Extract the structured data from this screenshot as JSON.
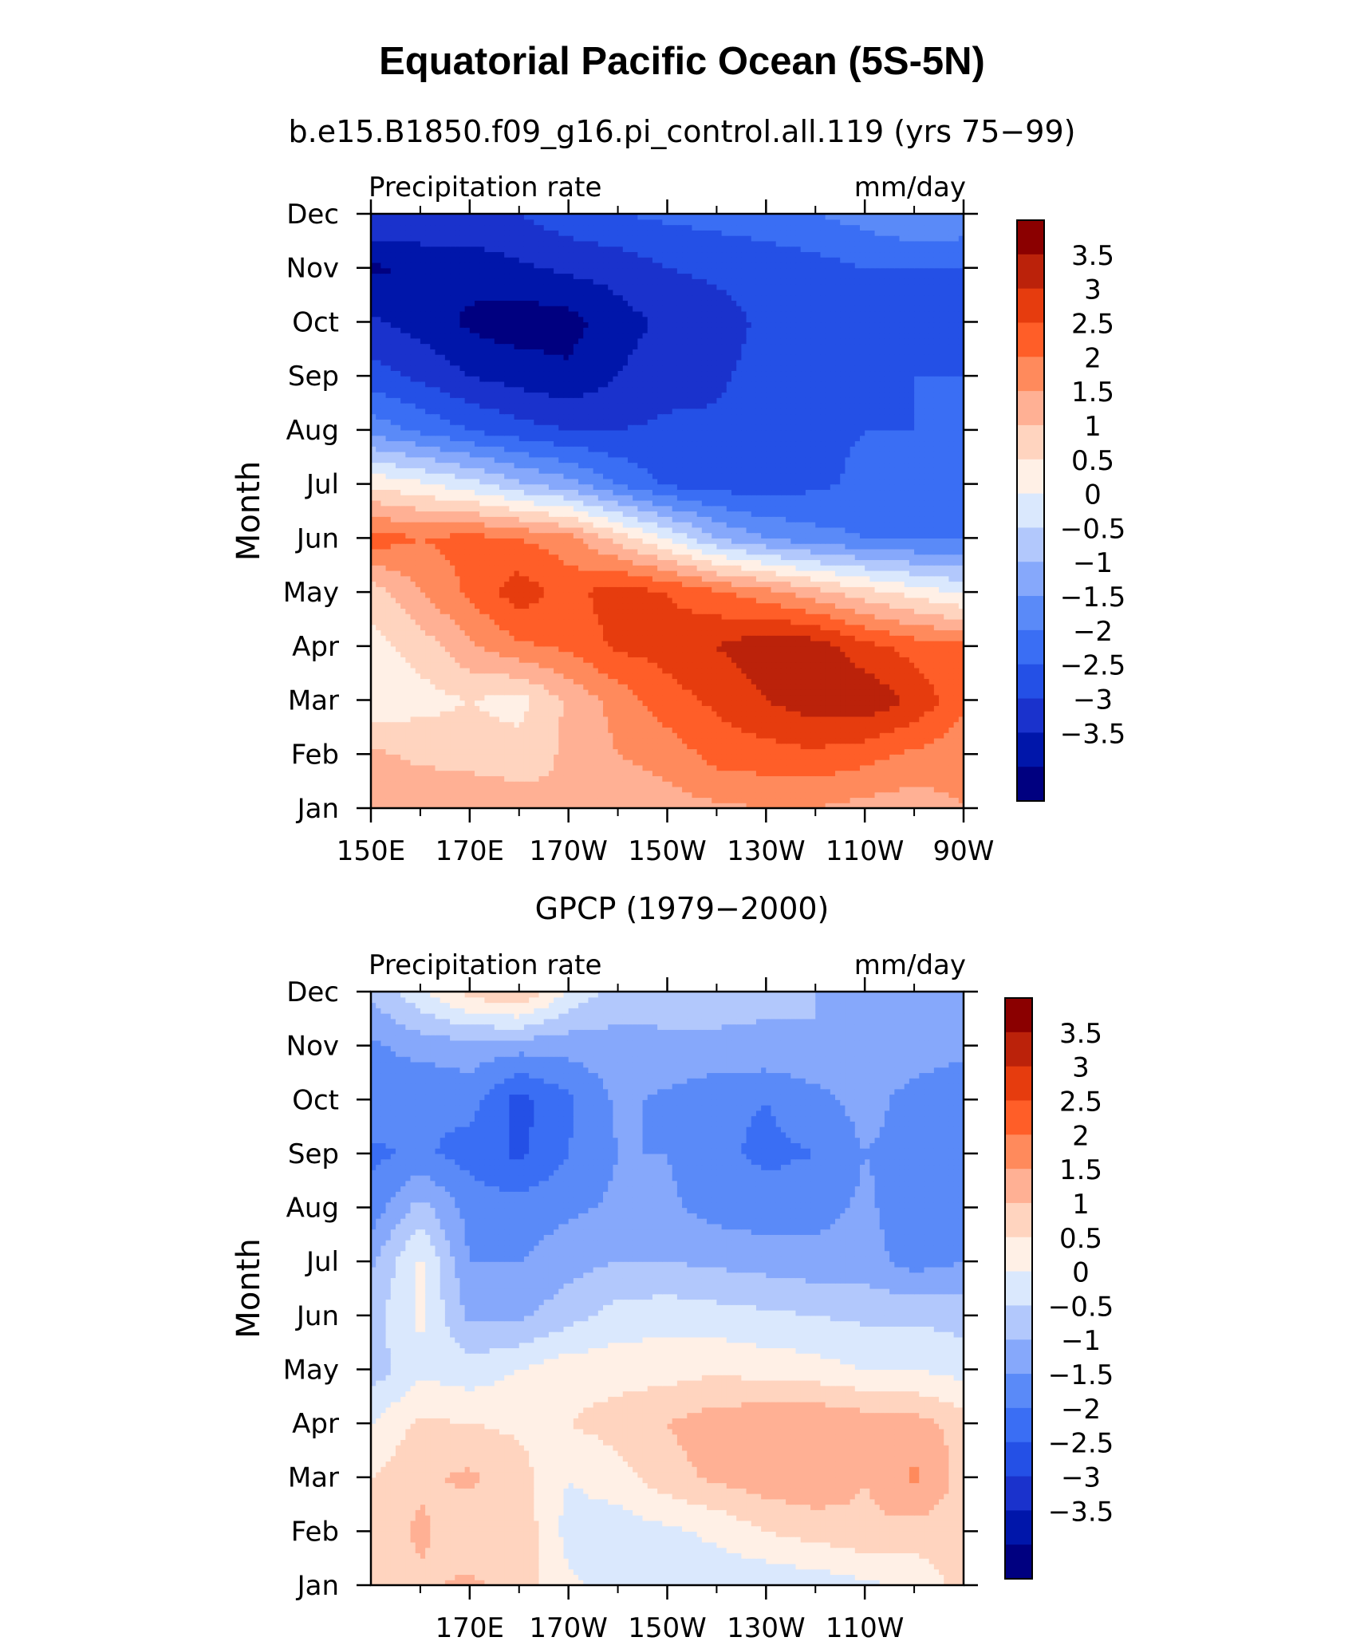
{
  "title": "Equatorial Pacific Ocean (5S-5N)",
  "chart_data": [
    {
      "type": "heatmap",
      "panel_title": "b.e15.B1850.f09_g16.pi_control.all.119 (yrs 75−99)",
      "variable_label": "Precipitation rate",
      "units_label": "mm/day",
      "ylabel": "Month",
      "months": [
        "Jan",
        "Feb",
        "Mar",
        "Apr",
        "May",
        "Jun",
        "Jul",
        "Aug",
        "Sep",
        "Oct",
        "Nov",
        "Dec"
      ],
      "x_ticks": [
        "150E",
        "170E",
        "170W",
        "150W",
        "130W",
        "110W",
        "90W"
      ],
      "x_values": [
        150,
        170,
        190,
        210,
        230,
        250,
        270
      ],
      "xlim": [
        150,
        270
      ],
      "ylim": [
        1,
        12
      ],
      "rows": [
        [
          1.8,
          1.9,
          1.9,
          1.8,
          1.5,
          1.6,
          1.8,
          1.9,
          2.0,
          2.0,
          1.8,
          1.7,
          2.0
        ],
        [
          1.6,
          1.4,
          1.3,
          1.2,
          1.6,
          2.0,
          2.2,
          2.7,
          2.8,
          2.9,
          2.7,
          2.4,
          2.2
        ],
        [
          0.6,
          0.8,
          1.0,
          0.8,
          1.6,
          2.2,
          2.8,
          3.1,
          3.5,
          3.8,
          3.9,
          3.4,
          2.6
        ],
        [
          0.8,
          1.2,
          1.9,
          2.4,
          2.6,
          3.1,
          3.2,
          3.5,
          3.9,
          3.8,
          3.2,
          2.8,
          2.6
        ],
        [
          1.2,
          2.0,
          2.6,
          3.3,
          2.8,
          3.3,
          3.0,
          2.6,
          2.2,
          1.7,
          1.2,
          0.8,
          0.4
        ],
        [
          2.8,
          2.5,
          2.7,
          2.5,
          2.2,
          1.3,
          0.5,
          -0.5,
          -1.0,
          -1.3,
          -1.5,
          -1.6,
          -1.6
        ],
        [
          0.9,
          0.6,
          0.2,
          -0.4,
          -0.8,
          -1.5,
          -2.1,
          -2.2,
          -2.3,
          -2.1,
          -1.9,
          -1.8,
          -2.0
        ],
        [
          -1.2,
          -1.6,
          -2.0,
          -2.3,
          -2.5,
          -2.5,
          -2.4,
          -2.4,
          -2.2,
          -2.1,
          -2.0,
          -2.0,
          -1.9
        ],
        [
          -2.3,
          -2.6,
          -3.0,
          -3.2,
          -3.4,
          -3.0,
          -2.7,
          -2.6,
          -2.3,
          -2.2,
          -2.1,
          -2.0,
          -2.0
        ],
        [
          -2.9,
          -3.2,
          -3.6,
          -3.8,
          -3.7,
          -3.2,
          -2.9,
          -2.7,
          -2.4,
          -2.3,
          -2.2,
          -2.0,
          -2.1
        ],
        [
          -3.6,
          -3.4,
          -3.3,
          -3.1,
          -2.9,
          -2.8,
          -2.5,
          -2.4,
          -2.3,
          -2.2,
          -2.0,
          -2.0,
          -2.0
        ],
        [
          -2.5,
          -2.5,
          -2.6,
          -2.5,
          -2.2,
          -2.0,
          -1.9,
          -1.8,
          -1.7,
          -1.5,
          -1.3,
          -1.0,
          -1.1
        ]
      ]
    },
    {
      "type": "heatmap",
      "panel_title": "GPCP (1979−2000)",
      "variable_label": "Precipitation rate",
      "units_label": "mm/day",
      "ylabel": "Month",
      "months": [
        "Jan",
        "Feb",
        "Mar",
        "Apr",
        "May",
        "Jun",
        "Jul",
        "Aug",
        "Sep",
        "Oct",
        "Nov",
        "Dec"
      ],
      "x_ticks": [
        "170E",
        "170W",
        "150W",
        "130W",
        "110W"
      ],
      "x_values": [
        170,
        190,
        210,
        230,
        250
      ],
      "xlim": [
        150,
        270
      ],
      "ylim": [
        1,
        12
      ],
      "rows": [
        [
          1.2,
          1.4,
          1.6,
          1.3,
          0.6,
          0.3,
          0.3,
          0.2,
          0.1,
          0.2,
          0.4,
          0.6,
          1.2
        ],
        [
          1.2,
          1.6,
          1.1,
          1.4,
          0.3,
          0.2,
          0.4,
          0.6,
          1.0,
          1.2,
          1.4,
          1.3,
          1.3
        ],
        [
          1.0,
          1.4,
          1.6,
          1.2,
          0.5,
          0.8,
          1.3,
          1.6,
          1.8,
          1.9,
          1.5,
          2.1,
          1.3
        ],
        [
          0.5,
          1.1,
          1.0,
          0.9,
          1.0,
          1.2,
          1.5,
          1.8,
          1.9,
          2.0,
          1.8,
          1.7,
          1.3
        ],
        [
          -0.3,
          0.4,
          0.2,
          0.5,
          0.8,
          0.8,
          0.8,
          0.9,
          0.8,
          0.7,
          0.5,
          0.5,
          0.3
        ],
        [
          -0.2,
          0.6,
          -0.6,
          -0.6,
          -0.2,
          0.2,
          0.3,
          0.2,
          0.1,
          0.0,
          -0.1,
          -0.1,
          -0.2
        ],
        [
          -0.6,
          0.6,
          -1.0,
          -1.0,
          -0.7,
          -0.5,
          -0.5,
          -0.6,
          -0.7,
          -0.8,
          -0.8,
          -1.2,
          -1.0
        ],
        [
          -1.3,
          -0.3,
          -1.2,
          -1.3,
          -1.1,
          -0.9,
          -0.9,
          -1.2,
          -1.3,
          -1.2,
          -0.9,
          -1.3,
          -1.2
        ],
        [
          -1.6,
          -1.4,
          -1.7,
          -2.1,
          -1.5,
          -1.0,
          -1.0,
          -1.4,
          -1.6,
          -1.5,
          -1.0,
          -1.2,
          -1.5
        ],
        [
          -1.2,
          -1.5,
          -1.3,
          -2.2,
          -1.6,
          -0.9,
          -1.1,
          -1.4,
          -1.5,
          -1.2,
          -0.8,
          -1.2,
          -1.5
        ],
        [
          -1.1,
          -0.8,
          -0.7,
          -0.8,
          -0.8,
          -0.7,
          -0.6,
          -0.6,
          -0.6,
          -0.5,
          -0.6,
          -0.7,
          -0.8
        ],
        [
          -0.4,
          0.4,
          1.2,
          1.6,
          0.4,
          -0.2,
          -0.3,
          -0.3,
          -0.4,
          -0.5,
          -0.5,
          -0.5,
          -0.6
        ]
      ]
    }
  ],
  "colorbar": {
    "labels": [
      "3.5",
      "3",
      "2.5",
      "2",
      "1.5",
      "1",
      "0.5",
      "0",
      "−0.5",
      "−1",
      "−1.5",
      "−2",
      "−2.5",
      "−3",
      "−3.5"
    ],
    "levels": [
      -3.5,
      -3,
      -2.5,
      -2,
      -1.5,
      -1,
      -0.5,
      0,
      0.5,
      1,
      1.5,
      2,
      2.5,
      3,
      3.5
    ],
    "colors": [
      "#000080",
      "#0016aa",
      "#1a32cc",
      "#2450e6",
      "#3a6ef4",
      "#5a8af8",
      "#86a8fb",
      "#b2c8fc",
      "#dae8fd",
      "#fff0e6",
      "#ffd4bf",
      "#ffb094",
      "#ff8a5c",
      "#ff5e28",
      "#e63c0e",
      "#bb220a",
      "#8b0000"
    ]
  }
}
